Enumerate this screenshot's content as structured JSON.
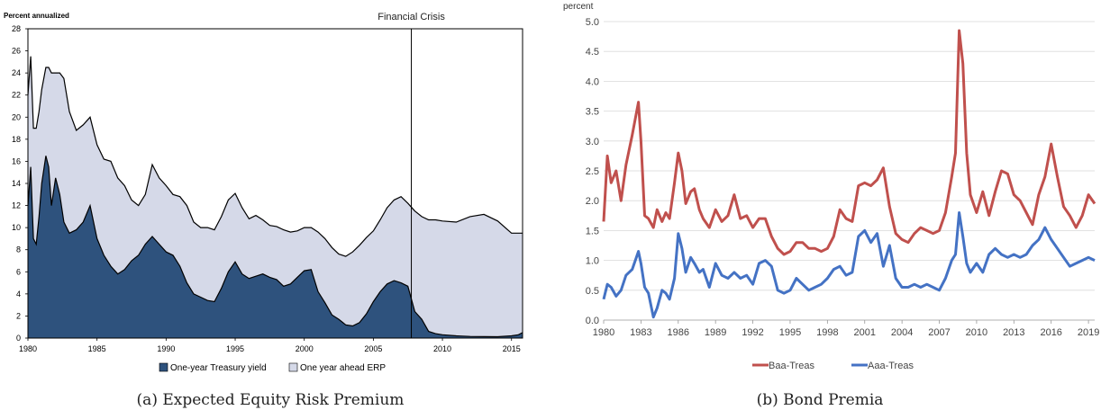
{
  "chart_data": [
    {
      "type": "area",
      "stacked": true,
      "caption": "(a) Expected Equity Risk Premium",
      "ylabel": "Percent annualized",
      "annotation": "Financial Crisis",
      "annotation_x": 2007.75,
      "xlim": [
        1980,
        2015.8
      ],
      "ylim": [
        0,
        28
      ],
      "x_ticks": [
        1980,
        1985,
        1990,
        1995,
        2000,
        2005,
        2010,
        2015
      ],
      "y_ticks": [
        0,
        2,
        4,
        6,
        8,
        10,
        12,
        14,
        16,
        18,
        20,
        22,
        24,
        26,
        28
      ],
      "legend_position": "bottom",
      "colors": {
        "treasury": "#2e527d",
        "erp": "#d5d9e8",
        "line": "#000000"
      },
      "series": [
        {
          "name": "One-year Treasury yield",
          "x": [
            1980,
            1980.2,
            1980.4,
            1980.6,
            1980.8,
            1981,
            1981.3,
            1981.5,
            1981.7,
            1982,
            1982.3,
            1982.6,
            1983,
            1983.5,
            1984,
            1984.5,
            1985,
            1985.5,
            1986,
            1986.5,
            1987,
            1987.5,
            1988,
            1988.5,
            1989,
            1989.5,
            1990,
            1990.5,
            1991,
            1991.5,
            1992,
            1992.5,
            1993,
            1993.5,
            1994,
            1994.5,
            1995,
            1995.5,
            1996,
            1996.5,
            1997,
            1997.5,
            1998,
            1998.5,
            1999,
            1999.5,
            2000,
            2000.5,
            2001,
            2001.5,
            2002,
            2002.5,
            2003,
            2003.5,
            2004,
            2004.5,
            2005,
            2005.5,
            2006,
            2006.5,
            2007,
            2007.5,
            2008,
            2008.5,
            2009,
            2009.5,
            2010,
            2011,
            2012,
            2013,
            2014,
            2015,
            2015.5,
            2015.8
          ],
          "values": [
            12,
            15.5,
            9,
            8.5,
            11,
            14,
            16.5,
            15.5,
            12,
            14.5,
            13,
            10.5,
            9.5,
            9.8,
            10.5,
            12,
            9,
            7.5,
            6.5,
            5.8,
            6.2,
            7,
            7.5,
            8.5,
            9.2,
            8.5,
            7.8,
            7.5,
            6.5,
            5,
            4,
            3.7,
            3.4,
            3.3,
            4.5,
            6,
            6.9,
            5.8,
            5.4,
            5.6,
            5.8,
            5.5,
            5.3,
            4.7,
            4.9,
            5.5,
            6.1,
            6.2,
            4.2,
            3.2,
            2.1,
            1.7,
            1.2,
            1.1,
            1.4,
            2.2,
            3.3,
            4.2,
            4.9,
            5.2,
            5,
            4.7,
            2.4,
            1.7,
            0.6,
            0.4,
            0.3,
            0.2,
            0.15,
            0.13,
            0.12,
            0.2,
            0.3,
            0.5
          ]
        },
        {
          "name": "One year ahead ERP",
          "x": [
            1980,
            1980.2,
            1980.4,
            1980.6,
            1980.8,
            1981,
            1981.3,
            1981.5,
            1981.7,
            1982,
            1982.3,
            1982.6,
            1983,
            1983.5,
            1984,
            1984.5,
            1985,
            1985.5,
            1986,
            1986.5,
            1987,
            1987.5,
            1988,
            1988.5,
            1989,
            1989.5,
            1990,
            1990.5,
            1991,
            1991.5,
            1992,
            1992.5,
            1993,
            1993.5,
            1994,
            1994.5,
            1995,
            1995.5,
            1996,
            1996.5,
            1997,
            1997.5,
            1998,
            1998.5,
            1999,
            1999.5,
            2000,
            2000.5,
            2001,
            2001.5,
            2002,
            2002.5,
            2003,
            2003.5,
            2004,
            2004.5,
            2005,
            2005.5,
            2006,
            2006.5,
            2007,
            2007.5,
            2008,
            2008.5,
            2009,
            2009.5,
            2010,
            2011,
            2012,
            2013,
            2014,
            2015,
            2015.5,
            2015.8
          ],
          "values": [
            10,
            10,
            10,
            10.5,
            9.5,
            8.5,
            8,
            9,
            12,
            9.5,
            11,
            13,
            11,
            9,
            8.8,
            8,
            8.5,
            8.7,
            9.5,
            8.7,
            7.6,
            5.5,
            4.5,
            4.5,
            6.5,
            6,
            6,
            5.5,
            6.3,
            7,
            6.5,
            6.3,
            6.6,
            6.5,
            6.5,
            6.5,
            6.2,
            6,
            5.4,
            5.5,
            4.9,
            4.7,
            4.8,
            5.1,
            4.7,
            4.2,
            3.9,
            3.8,
            5.4,
            5.8,
            6.1,
            5.9,
            6.2,
            6.7,
            7,
            6.9,
            6.4,
            6.5,
            6.9,
            7.3,
            7.8,
            7.5,
            9.1,
            9.3,
            10.1,
            10.3,
            10.3,
            10.3,
            10.85,
            11.07,
            10.48,
            9.3,
            9.2,
            9
          ]
        }
      ]
    },
    {
      "type": "line",
      "caption": "(b) Bond Premia",
      "ylabel": "percent",
      "xlim": [
        1980,
        2019.5
      ],
      "ylim": [
        0,
        5
      ],
      "x_ticks": [
        1980,
        1983,
        1986,
        1989,
        1992,
        1995,
        1998,
        2001,
        2004,
        2007,
        2010,
        2013,
        2016,
        2019
      ],
      "y_ticks": [
        "0.0",
        "0.5",
        "1.0",
        "1.5",
        "2.0",
        "2.5",
        "3.0",
        "3.5",
        "4.0",
        "4.5",
        "5.0"
      ],
      "grid": true,
      "legend_position": "bottom",
      "series": [
        {
          "name": "Baa-Treas",
          "color": "#c0504d",
          "x": [
            1980,
            1980.3,
            1980.6,
            1981,
            1981.4,
            1981.8,
            1982.3,
            1982.8,
            1983,
            1983.3,
            1983.6,
            1984,
            1984.3,
            1984.7,
            1985,
            1985.3,
            1985.7,
            1986,
            1986.3,
            1986.6,
            1987,
            1987.3,
            1987.7,
            1988,
            1988.5,
            1989,
            1989.5,
            1990,
            1990.5,
            1991,
            1991.5,
            1992,
            1992.5,
            1993,
            1993.5,
            1994,
            1994.5,
            1995,
            1995.5,
            1996,
            1996.5,
            1997,
            1997.5,
            1998,
            1998.5,
            1999,
            1999.5,
            2000,
            2000.5,
            2001,
            2001.5,
            2002,
            2002.5,
            2003,
            2003.5,
            2004,
            2004.5,
            2005,
            2005.5,
            2006,
            2006.5,
            2007,
            2007.5,
            2008,
            2008.3,
            2008.6,
            2008.9,
            2009.2,
            2009.5,
            2010,
            2010.5,
            2011,
            2011.5,
            2012,
            2012.5,
            2013,
            2013.5,
            2014,
            2014.5,
            2015,
            2015.5,
            2016,
            2016.5,
            2017,
            2017.5,
            2018,
            2018.5,
            2019,
            2019.5
          ],
          "values": [
            1.65,
            2.75,
            2.3,
            2.5,
            2.0,
            2.6,
            3.1,
            3.65,
            3.0,
            1.75,
            1.7,
            1.55,
            1.85,
            1.65,
            1.8,
            1.7,
            2.3,
            2.8,
            2.5,
            1.95,
            2.15,
            2.2,
            1.85,
            1.7,
            1.55,
            1.85,
            1.65,
            1.75,
            2.1,
            1.7,
            1.75,
            1.55,
            1.7,
            1.7,
            1.4,
            1.2,
            1.1,
            1.15,
            1.3,
            1.3,
            1.2,
            1.2,
            1.15,
            1.2,
            1.4,
            1.85,
            1.7,
            1.65,
            2.25,
            2.3,
            2.25,
            2.35,
            2.55,
            1.9,
            1.45,
            1.35,
            1.3,
            1.45,
            1.55,
            1.5,
            1.45,
            1.5,
            1.8,
            2.4,
            2.8,
            4.85,
            4.3,
            2.8,
            2.1,
            1.8,
            2.15,
            1.75,
            2.15,
            2.5,
            2.45,
            2.1,
            2.0,
            1.8,
            1.6,
            2.1,
            2.4,
            2.95,
            2.4,
            1.9,
            1.75,
            1.55,
            1.75,
            2.1,
            1.95
          ]
        },
        {
          "name": "Aaa-Treas",
          "color": "#4472c4",
          "x": [
            1980,
            1980.3,
            1980.6,
            1981,
            1981.4,
            1981.8,
            1982.3,
            1982.8,
            1983,
            1983.3,
            1983.6,
            1984,
            1984.3,
            1984.7,
            1985,
            1985.3,
            1985.7,
            1986,
            1986.3,
            1986.6,
            1987,
            1987.3,
            1987.7,
            1988,
            1988.5,
            1989,
            1989.5,
            1990,
            1990.5,
            1991,
            1991.5,
            1992,
            1992.5,
            1993,
            1993.5,
            1994,
            1994.5,
            1995,
            1995.5,
            1996,
            1996.5,
            1997,
            1997.5,
            1998,
            1998.5,
            1999,
            1999.5,
            2000,
            2000.5,
            2001,
            2001.5,
            2002,
            2002.5,
            2003,
            2003.5,
            2004,
            2004.5,
            2005,
            2005.5,
            2006,
            2006.5,
            2007,
            2007.5,
            2008,
            2008.3,
            2008.6,
            2008.9,
            2009.2,
            2009.5,
            2010,
            2010.5,
            2011,
            2011.5,
            2012,
            2012.5,
            2013,
            2013.5,
            2014,
            2014.5,
            2015,
            2015.5,
            2016,
            2016.5,
            2017,
            2017.5,
            2018,
            2018.5,
            2019,
            2019.5
          ],
          "values": [
            0.35,
            0.6,
            0.55,
            0.4,
            0.5,
            0.75,
            0.85,
            1.15,
            0.95,
            0.55,
            0.45,
            0.05,
            0.2,
            0.5,
            0.45,
            0.35,
            0.7,
            1.45,
            1.2,
            0.8,
            1.05,
            0.95,
            0.8,
            0.85,
            0.55,
            0.95,
            0.75,
            0.7,
            0.8,
            0.7,
            0.75,
            0.6,
            0.95,
            1.0,
            0.9,
            0.5,
            0.45,
            0.5,
            0.7,
            0.6,
            0.5,
            0.55,
            0.6,
            0.7,
            0.85,
            0.9,
            0.75,
            0.8,
            1.4,
            1.5,
            1.3,
            1.45,
            0.9,
            1.25,
            0.7,
            0.55,
            0.55,
            0.6,
            0.55,
            0.6,
            0.55,
            0.5,
            0.7,
            1.0,
            1.1,
            1.8,
            1.4,
            0.95,
            0.8,
            0.95,
            0.8,
            1.1,
            1.2,
            1.1,
            1.05,
            1.1,
            1.05,
            1.1,
            1.25,
            1.35,
            1.55,
            1.35,
            1.2,
            1.05,
            0.9,
            0.95,
            1.0,
            1.05,
            1.0
          ]
        }
      ]
    }
  ]
}
